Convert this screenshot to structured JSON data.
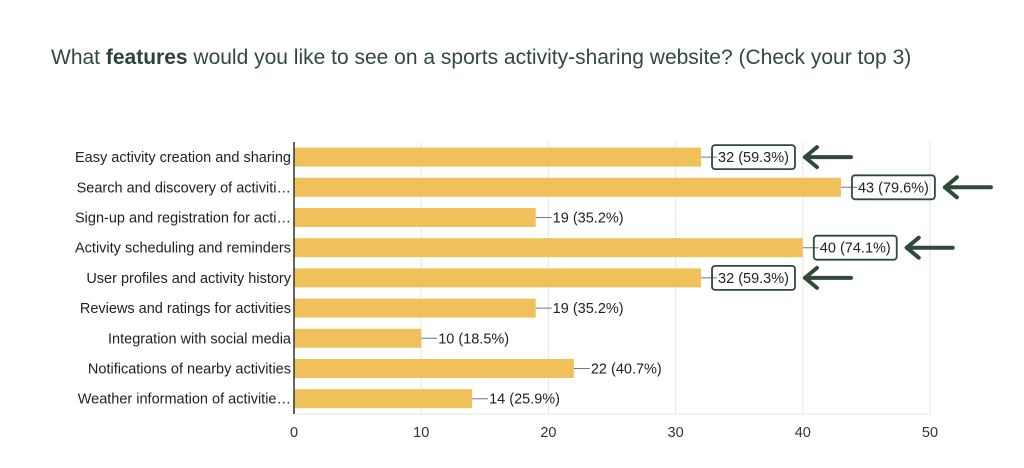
{
  "question": {
    "prefix": "What ",
    "bold": "features",
    "suffix": " would you like to see on a sports activity-sharing website? (Check your top 3)"
  },
  "chart_data": {
    "type": "bar",
    "orientation": "horizontal",
    "categories": [
      "Easy activity creation and sharing",
      "Search and discovery of activiti…",
      "Sign-up and registration for acti…",
      "Activity scheduling and reminders",
      "User profiles and activity history",
      "Reviews and ratings for activities",
      "Integration with social media",
      "Notifications of nearby activities",
      "Weather information of activitie…"
    ],
    "values": [
      32,
      43,
      19,
      40,
      32,
      19,
      10,
      22,
      14
    ],
    "value_labels": [
      "32 (59.3%)",
      "43 (79.6%)",
      "19 (35.2%)",
      "40 (74.1%)",
      "32 (59.3%)",
      "19 (35.2%)",
      "10 (18.5%)",
      "22 (40.7%)",
      "14 (25.9%)"
    ],
    "highlighted": [
      true,
      true,
      false,
      true,
      true,
      false,
      false,
      false,
      false
    ],
    "xlim": [
      0,
      50
    ],
    "xticks": [
      0,
      10,
      20,
      30,
      40,
      50
    ],
    "grid": true,
    "bar_color": "#f0c05a",
    "highlight_color": "#2f4a3b",
    "grid_color": "#e5e5e5",
    "axis_color": "#333333"
  }
}
